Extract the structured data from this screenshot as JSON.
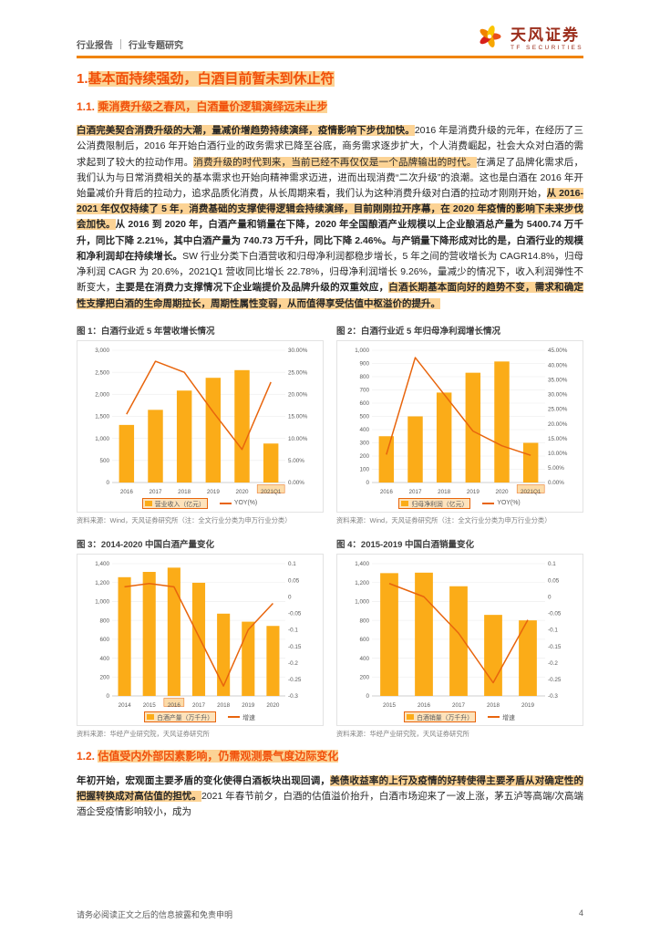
{
  "header": {
    "report_type": "行业报告",
    "report_subtype": "行业专题研究",
    "brand": "天风证券",
    "brand_sub": "TF SECURITIES"
  },
  "colors": {
    "accent": "#F08300",
    "heading": "#F1500A",
    "highlight": "#F9AF3E",
    "bar": "#FBAC18",
    "line": "#E8650D"
  },
  "h1_runs": [
    {
      "t": "1.",
      "b": true,
      "h": false
    },
    {
      "t": "基本面持续强劲，白酒目前暂未到休止符",
      "b": true,
      "h": true
    }
  ],
  "h2_1_runs": [
    {
      "t": "1.1. ",
      "b": true,
      "h": false
    },
    {
      "t": "乘消费升级之春风，白酒量价逻辑演绎远未止步",
      "b": true,
      "h": true
    }
  ],
  "para1_runs": [
    {
      "t": "白酒完美契合消费升级的大潮，量减价增趋势持续演绎，疫情影响下步伐加快。",
      "b": true,
      "h": true
    },
    {
      "t": "2016 年是消费升级的元年，在经历了三公消费限制后，2016 年开始白酒行业的政务需求已降至谷底，商务需求逐步扩大，个人消费崛起，社会大众对白酒的需求起到了较大的拉动作用。",
      "b": false,
      "h": false
    },
    {
      "t": "消费升级的时代到来，当前已经不再仅仅是一个品牌输出的时代。",
      "b": false,
      "h": true
    },
    {
      "t": "在满足了品牌化需求后，我们认为与日常消费相关的基本需求也开始向精神需求迈进，进而出现消费“二次升级”的浪潮。这也是白酒在 2016 年开始量减价升背后的拉动力，追求品质化消费，从长周期来看，我们认为这种消费升级对白酒的拉动才刚刚开始，",
      "b": false,
      "h": false
    },
    {
      "t": "从 2016-2021 年仅仅持续了 5 年，消费基础的支撑使得逻辑会持续演绎，目前刚刚拉开序幕，在 2020 年疫情的影响下未来步伐会加快。",
      "b": true,
      "h": true
    },
    {
      "t": "从 2016 到 2020 年，白酒产量和销量在下降，2020 年全国酿酒产业规模以上企业酿酒总产量为 5400.74 万千升，同比下降 2.21%，其中白酒产量为 740.73 万千升，同比下降 2.46%。",
      "b": true,
      "h": false
    },
    {
      "t": "与产销量下降形成对比的是，白酒行业的规模和净利润却在持续增长。",
      "b": true,
      "h": false
    },
    {
      "t": "SW 行业分类下白酒营收和归母净利润都稳步增长，5 年之间的营收增长为 CAGR14.8%，归母净利润 CAGR 为 20.6%，2021Q1 营收同比增长 22.78%，归母净利润增长 9.26%，量减少的情况下，收入利润弹性不断变大，",
      "b": false,
      "h": false
    },
    {
      "t": "主要是在消费力支撑情况下企业端提价及品牌升级的双重效应，",
      "b": true,
      "h": false
    },
    {
      "t": "白酒长期基本面向好的趋势不变，需求和确定性支撑把白酒的生命周期拉长，周期性属性变弱，从而值得享受估值中枢溢价的提升。",
      "b": true,
      "h": true
    }
  ],
  "h2_2_runs": [
    {
      "t": "1.2. ",
      "b": true,
      "h": false
    },
    {
      "t": "估值受内外部因素影响，仍需观测景气度边际变化",
      "b": true,
      "h": true
    }
  ],
  "para2_runs": [
    {
      "t": "年初开始，宏观面主要矛盾的变化使得白酒板块出现回调，",
      "b": true,
      "h": false
    },
    {
      "t": "美债收益率的上行及疫情的好转使得主要矛盾从对确定性的把握转换成对高估值的担忧。",
      "b": true,
      "h": true
    },
    {
      "t": "2021 年春节前夕，白酒的估值溢价抬升，白酒市场迎来了一波上涨，茅五泸等高端/次高端酒企受疫情影响较小，成为",
      "b": false,
      "h": false
    }
  ],
  "chart_data": [
    {
      "type": "bar+line",
      "title": "图 1：白酒行业近 5 年营收增长情况",
      "categories": [
        "2016",
        "2017",
        "2018",
        "2019",
        "2020",
        "2021Q1"
      ],
      "bar_series": {
        "name": "营业收入（亿元）",
        "values": [
          1306,
          1648,
          2085,
          2375,
          2549,
          884
        ]
      },
      "line_series": {
        "name": "YOY(%)",
        "values": [
          15.5,
          27.5,
          25.0,
          16.0,
          7.5,
          22.78
        ]
      },
      "left_axis": {
        "ticks": [
          "0",
          "500",
          "1,000",
          "1,500",
          "2,000",
          "2,500",
          "3,000"
        ],
        "range": [
          0,
          3000
        ]
      },
      "right_axis": {
        "ticks": [
          "0.00%",
          "5.00%",
          "10.00%",
          "15.00%",
          "20.00%",
          "25.00%",
          "30.00%"
        ],
        "range": [
          0,
          30
        ]
      },
      "x_highlight": [
        "2021Q1"
      ],
      "legend_highlight": true,
      "source": "资料来源：Wind，天风证券研究所（注：全文行业分类为申万行业分类）"
    },
    {
      "type": "bar+line",
      "title": "图 2：白酒行业近 5 年归母净利润增长情况",
      "categories": [
        "2016",
        "2017",
        "2018",
        "2019",
        "2020",
        "2021Q1"
      ],
      "bar_series": {
        "name": "归母净利润（亿元）",
        "values": [
          350,
          500,
          680,
          830,
          915,
          300
        ]
      },
      "line_series": {
        "name": "YOY(%)",
        "values": [
          9.5,
          42.5,
          30.0,
          17.5,
          12.5,
          9.26
        ]
      },
      "left_axis": {
        "ticks": [
          "0",
          "100",
          "200",
          "300",
          "400",
          "500",
          "600",
          "700",
          "800",
          "900",
          "1,000"
        ],
        "range": [
          0,
          1000
        ]
      },
      "right_axis": {
        "ticks": [
          "0.00%",
          "5.00%",
          "10.00%",
          "15.00%",
          "20.00%",
          "25.00%",
          "30.00%",
          "35.00%",
          "40.00%",
          "45.00%"
        ],
        "range": [
          0,
          45
        ]
      },
      "x_highlight": [
        "2021Q1"
      ],
      "legend_highlight": true,
      "source": "资料来源：Wind，天风证券研究所（注：全文行业分类为申万行业分类）"
    },
    {
      "type": "bar+line",
      "title": "图 3：2014-2020 中国白酒产量变化",
      "categories": [
        "2014",
        "2015",
        "2016",
        "2017",
        "2018",
        "2019",
        "2020"
      ],
      "bar_series": {
        "name": "白酒产量（万千升）",
        "values": [
          1257,
          1313,
          1358,
          1198,
          871,
          786,
          741
        ]
      },
      "line_series": {
        "name": "增速",
        "values": [
          0.03,
          0.04,
          0.03,
          -0.12,
          -0.27,
          -0.1,
          -0.02
        ]
      },
      "left_axis": {
        "ticks": [
          "0",
          "200",
          "400",
          "600",
          "800",
          "1,000",
          "1,200",
          "1,400"
        ],
        "range": [
          0,
          1400
        ]
      },
      "right_axis": {
        "ticks": [
          "-0.3",
          "-0.25",
          "-0.2",
          "-0.15",
          "-0.1",
          "-0.05",
          "0",
          "0.05",
          "0.1"
        ],
        "range": [
          -0.3,
          0.1
        ]
      },
      "x_highlight": [
        "2016"
      ],
      "legend_highlight": true,
      "source": "资料来源：华经产业研究院，天风证券研究所"
    },
    {
      "type": "bar+line",
      "title": "图 4：2015-2019 中国白酒销量变化",
      "categories": [
        "2015",
        "2016",
        "2017",
        "2018",
        "2019"
      ],
      "bar_series": {
        "name": "白酒销量（万千升）",
        "values": [
          1300,
          1305,
          1161,
          858,
          800
        ]
      },
      "line_series": {
        "name": "增速",
        "values": [
          0.04,
          0.0,
          -0.11,
          -0.26,
          -0.07
        ]
      },
      "left_axis": {
        "ticks": [
          "0",
          "200",
          "400",
          "600",
          "800",
          "1,000",
          "1,200",
          "1,400"
        ],
        "range": [
          0,
          1400
        ]
      },
      "right_axis": {
        "ticks": [
          "-0.3",
          "-0.25",
          "-0.2",
          "-0.15",
          "-0.1",
          "-0.05",
          "0",
          "0.05",
          "0.1"
        ],
        "range": [
          -0.3,
          0.1
        ]
      },
      "x_highlight": [],
      "legend_highlight": true,
      "source": "资料来源：华经产业研究院，天风证券研究所"
    }
  ],
  "footer": {
    "disclaimer": "请务必阅读正文之后的信息披露和免责申明",
    "page_number": "4"
  }
}
